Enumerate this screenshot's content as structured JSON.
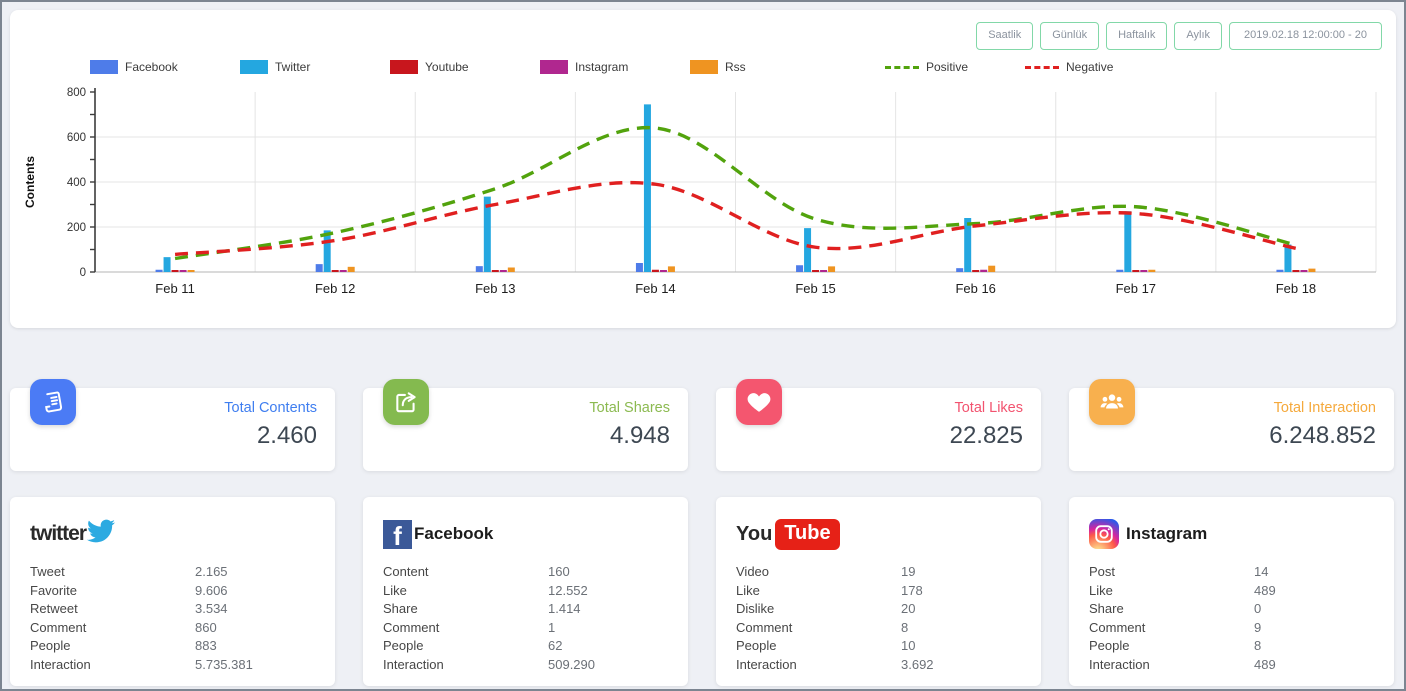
{
  "toolbar": {
    "buttons": [
      "Saatlik",
      "Günlük",
      "Haftalık",
      "Aylık"
    ],
    "date_range": "2019.02.18 12:00:00 - 20"
  },
  "chart_data": {
    "type": "bar",
    "title": "",
    "xlabel": "",
    "ylabel": "Contents",
    "ylim": [
      0,
      800
    ],
    "yticks": [
      0,
      200,
      400,
      600,
      800
    ],
    "grid": true,
    "legend_position": "top",
    "categories": [
      "Feb 11",
      "Feb 12",
      "Feb 13",
      "Feb 14",
      "Feb 15",
      "Feb 16",
      "Feb 17",
      "Feb 18"
    ],
    "series": [
      {
        "name": "Facebook",
        "type": "bar",
        "color": "#4e7ce9",
        "values": [
          10,
          35,
          26,
          40,
          30,
          17,
          10,
          10
        ]
      },
      {
        "name": "Twitter",
        "type": "bar",
        "color": "#24a7e0",
        "values": [
          66,
          185,
          335,
          745,
          195,
          240,
          270,
          122
        ]
      },
      {
        "name": "Youtube",
        "type": "bar",
        "color": "#c8161d",
        "values": [
          4,
          6,
          5,
          10,
          5,
          4,
          5,
          4
        ]
      },
      {
        "name": "Instagram",
        "type": "bar",
        "color": "#b0278f",
        "values": [
          3,
          5,
          8,
          6,
          4,
          10,
          4,
          3
        ]
      },
      {
        "name": "Rss",
        "type": "bar",
        "color": "#ef9421",
        "values": [
          5,
          23,
          20,
          25,
          25,
          28,
          10,
          15
        ]
      },
      {
        "name": "Positive",
        "type": "line",
        "color": "#52a30d",
        "values": [
          60,
          175,
          370,
          640,
          235,
          215,
          290,
          120
        ]
      },
      {
        "name": "Negative",
        "type": "line",
        "color": "#e02020",
        "values": [
          78,
          140,
          300,
          390,
          110,
          205,
          260,
          105
        ]
      }
    ]
  },
  "stats": [
    {
      "title": "Total Contents",
      "value": "2.460",
      "color": "#3f7ef0",
      "icon_bg": "#4b7bf5",
      "icon": "news-icon"
    },
    {
      "title": "Total Shares",
      "value": "4.948",
      "color": "#8cba51",
      "icon_bg": "#84ba4f",
      "icon": "share-icon"
    },
    {
      "title": "Total Likes",
      "value": "22.825",
      "color": "#f2536f",
      "icon_bg": "#f4566f",
      "icon": "heart-icon"
    },
    {
      "title": "Total Interaction",
      "value": "6.248.852",
      "color": "#f5a93c",
      "icon_bg": "#f8b04e",
      "icon": "people-icon"
    }
  ],
  "platforms": [
    {
      "name": "Twitter",
      "rows": [
        {
          "label": "Tweet",
          "value": "2.165"
        },
        {
          "label": "Favorite",
          "value": "9.606"
        },
        {
          "label": "Retweet",
          "value": "3.534"
        },
        {
          "label": "Comment",
          "value": "860"
        },
        {
          "label": "People",
          "value": "883"
        },
        {
          "label": "Interaction",
          "value": "5.735.381"
        }
      ]
    },
    {
      "name": "Facebook",
      "rows": [
        {
          "label": "Content",
          "value": "160"
        },
        {
          "label": "Like",
          "value": "12.552"
        },
        {
          "label": "Share",
          "value": "1.414"
        },
        {
          "label": "Comment",
          "value": "1"
        },
        {
          "label": "People",
          "value": "62"
        },
        {
          "label": "Interaction",
          "value": "509.290"
        }
      ]
    },
    {
      "name": "Youtube",
      "rows": [
        {
          "label": "Video",
          "value": "19"
        },
        {
          "label": "Like",
          "value": "178"
        },
        {
          "label": "Dislike",
          "value": "20"
        },
        {
          "label": "Comment",
          "value": "8"
        },
        {
          "label": "People",
          "value": "10"
        },
        {
          "label": "Interaction",
          "value": "3.692"
        }
      ]
    },
    {
      "name": "Instagram",
      "rows": [
        {
          "label": "Post",
          "value": "14"
        },
        {
          "label": "Like",
          "value": "489"
        },
        {
          "label": "Share",
          "value": "0"
        },
        {
          "label": "Comment",
          "value": "9"
        },
        {
          "label": "People",
          "value": "8"
        },
        {
          "label": "Interaction",
          "value": "489"
        }
      ]
    }
  ],
  "logos": {
    "twitter_word": "twitter",
    "facebook_letter": "f",
    "facebook_word": "Facebook",
    "youtube_you": "You",
    "youtube_tube": "Tube",
    "instagram_word": "Instagram"
  }
}
